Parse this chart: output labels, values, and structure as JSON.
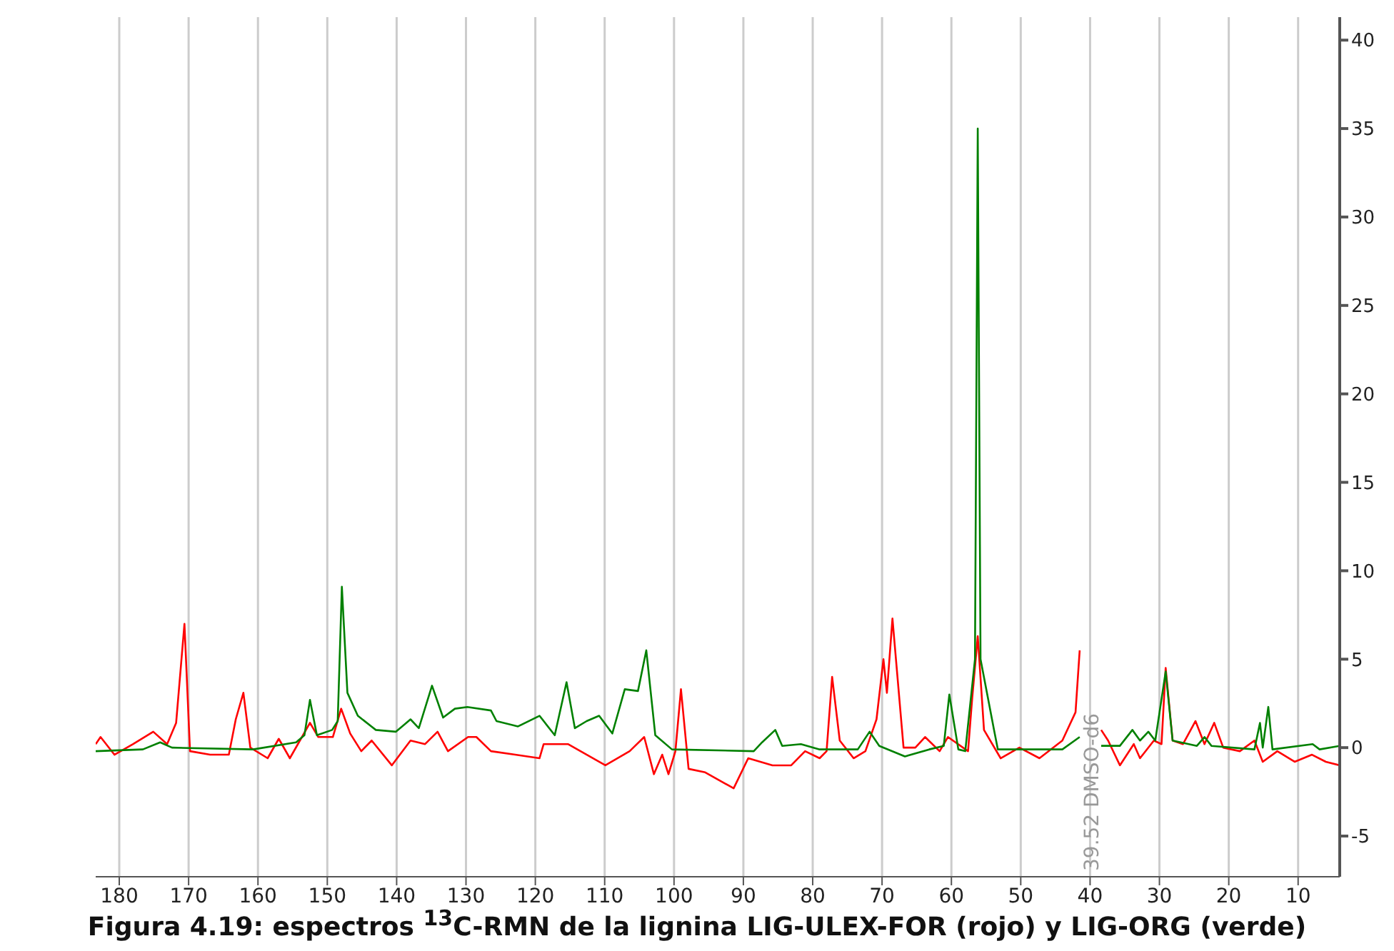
{
  "chart_data": {
    "type": "line",
    "title": "Figura 4.19: espectros $^{13}$C-RMN de la lignina LIG-ULEX-FOR (rojo) y LIG-ORG (verde)",
    "xlim": [
      183.4,
      4.0
    ],
    "xticks": [
      180,
      170,
      160,
      150,
      140,
      130,
      120,
      110,
      100,
      90,
      80,
      70,
      60,
      50,
      40,
      30,
      20,
      10
    ],
    "ylim": [
      -7.3,
      41.3
    ],
    "yticks": [
      -5,
      0,
      5,
      10,
      15,
      20,
      25,
      30,
      35,
      40
    ],
    "grid": "x",
    "legend": false,
    "marker": "none",
    "line_style": "solid",
    "annotations": [
      "39.52 DMSO-d6"
    ],
    "series": [
      {
        "color": "#ff0000",
        "x": [
          183.4,
          182.7,
          180.7,
          178.0,
          175.1,
          173.1,
          171.8,
          170.6,
          169.8,
          166.9,
          164.2,
          163.2,
          162.1,
          161.1,
          158.6,
          157.0,
          155.4,
          152.5,
          151.3,
          149.2,
          148.0,
          146.7,
          145.1,
          143.6,
          140.7,
          138.0,
          135.9,
          134.1,
          132.6,
          129.7,
          128.5,
          126.4,
          122.9,
          119.4,
          118.8,
          115.3,
          109.9,
          106.4,
          104.3,
          102.9,
          101.7,
          100.8,
          99.8,
          99.0,
          97.9,
          95.5,
          91.4,
          89.3,
          85.8,
          83.1,
          81.1,
          79.0,
          78.0,
          77.2,
          76.1,
          74.1,
          72.4,
          70.8,
          69.8,
          69.3,
          68.5,
          66.9,
          65.2,
          63.8,
          61.7,
          60.5,
          57.6,
          57.0,
          56.2,
          55.3,
          52.9,
          50.2,
          47.3,
          44.0,
          42.1,
          41.5,
          40.9,
          40.1,
          39.2,
          38.4,
          37.4,
          35.7,
          33.7,
          32.8,
          30.8,
          29.7,
          29.1,
          28.1,
          26.6,
          24.8,
          23.5,
          22.1,
          20.8,
          18.4,
          16.3,
          15.1,
          13.0,
          10.5,
          8.0,
          6.0,
          4.0
        ],
        "values": [
          0.2,
          0.6,
          -0.4,
          0.2,
          0.9,
          0.2,
          1.4,
          7.0,
          -0.2,
          -0.4,
          -0.4,
          1.6,
          3.1,
          0.0,
          -0.6,
          0.5,
          -0.6,
          1.4,
          0.6,
          0.6,
          2.2,
          0.8,
          -0.2,
          0.4,
          -1.0,
          0.4,
          0.2,
          0.9,
          -0.2,
          0.6,
          0.6,
          -0.2,
          -0.4,
          -0.6,
          0.2,
          0.2,
          -1.0,
          -0.2,
          0.6,
          -1.5,
          -0.4,
          -1.5,
          -0.2,
          3.3,
          -1.2,
          -1.4,
          -2.3,
          -0.6,
          -1.0,
          -1.0,
          -0.2,
          -0.6,
          -0.2,
          4.0,
          0.4,
          -0.6,
          -0.2,
          1.6,
          5.0,
          3.1,
          7.3,
          0.0,
          0.0,
          0.6,
          -0.2,
          0.6,
          -0.2,
          2.8,
          6.3,
          1.0,
          -0.6,
          0.0,
          -0.6,
          0.4,
          2.0,
          5.5,
          null,
          null,
          null,
          1.0,
          0.4,
          -1.0,
          0.2,
          -0.6,
          0.4,
          0.2,
          4.5,
          0.4,
          0.2,
          1.5,
          0.2,
          1.4,
          0.0,
          -0.2,
          0.4,
          -0.8,
          -0.2,
          -0.8,
          -0.4,
          -0.8,
          -1.0
        ]
      },
      {
        "color": "#008000",
        "x": [
          183.4,
          176.6,
          174.1,
          172.4,
          160.7,
          154.5,
          153.3,
          152.5,
          151.5,
          149.3,
          148.5,
          147.9,
          147.1,
          145.6,
          143.0,
          140.1,
          138.0,
          136.8,
          134.9,
          133.3,
          131.6,
          129.8,
          126.4,
          125.6,
          122.5,
          119.4,
          117.2,
          115.5,
          114.3,
          112.6,
          110.8,
          108.9,
          107.1,
          105.2,
          104.0,
          102.7,
          100.3,
          88.5,
          87.3,
          85.4,
          84.4,
          81.7,
          79.0,
          73.5,
          71.8,
          70.4,
          66.7,
          63.2,
          61.1,
          60.3,
          59.0,
          58.0,
          56.6,
          56.2,
          55.8,
          53.9,
          53.3,
          44.0,
          41.5,
          40.5,
          39.9,
          39.3,
          38.4,
          35.7,
          33.9,
          32.8,
          31.6,
          30.6,
          29.1,
          28.1,
          24.6,
          23.5,
          22.5,
          16.3,
          15.5,
          15.1,
          14.3,
          13.7,
          7.9,
          6.9,
          4.0
        ],
        "values": [
          -0.2,
          -0.1,
          0.3,
          0.0,
          -0.1,
          0.3,
          0.7,
          2.7,
          0.7,
          1.0,
          1.5,
          9.1,
          3.1,
          1.8,
          1.0,
          0.9,
          1.6,
          1.1,
          3.5,
          1.7,
          2.2,
          2.3,
          2.1,
          1.5,
          1.2,
          1.8,
          0.7,
          3.7,
          1.1,
          1.5,
          1.8,
          0.8,
          3.3,
          3.2,
          5.5,
          0.7,
          -0.1,
          -0.2,
          0.3,
          1.0,
          0.1,
          0.2,
          -0.1,
          -0.1,
          0.9,
          0.1,
          -0.5,
          -0.1,
          0.1,
          3.0,
          -0.1,
          -0.2,
          5.0,
          35.0,
          5.0,
          1.1,
          -0.1,
          -0.1,
          0.6,
          null,
          null,
          null,
          0.1,
          0.1,
          1.0,
          0.4,
          0.9,
          0.4,
          4.3,
          0.4,
          0.1,
          0.6,
          0.1,
          -0.1,
          1.4,
          0.0,
          2.3,
          -0.1,
          0.2,
          -0.1,
          0.1
        ]
      }
    ]
  }
}
